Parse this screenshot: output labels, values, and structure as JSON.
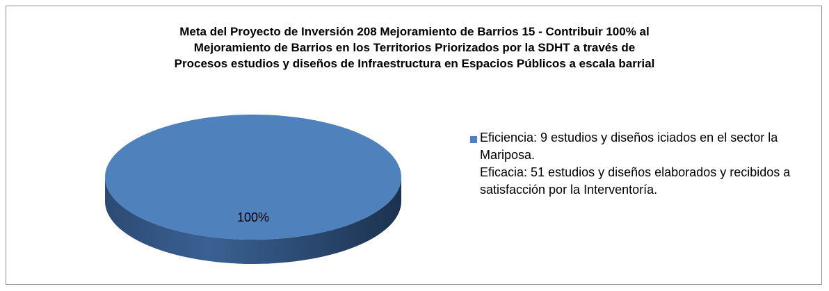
{
  "chart_data": {
    "type": "pie",
    "title": "Meta del Proyecto de Inversión 208 Mejoramiento de Barrios 15 - Contribuir 100% al\nMejoramiento de Barrios en los Territorios Priorizados por la SDHT a través de\nProcesos estudios y diseños de Infraestructura en Espacios Públicos a escala barrial",
    "categories": [
      "Eficiencia:  9 estudios y diseños iciados en el sector la Mariposa.\nEficacia: 51 estudios y diseños elaborados y recibidos a satisfacción por la Interventoría."
    ],
    "values": [
      100
    ],
    "value_labels": [
      "100%"
    ],
    "colors": [
      "#4f81bd"
    ],
    "legend": "right"
  }
}
